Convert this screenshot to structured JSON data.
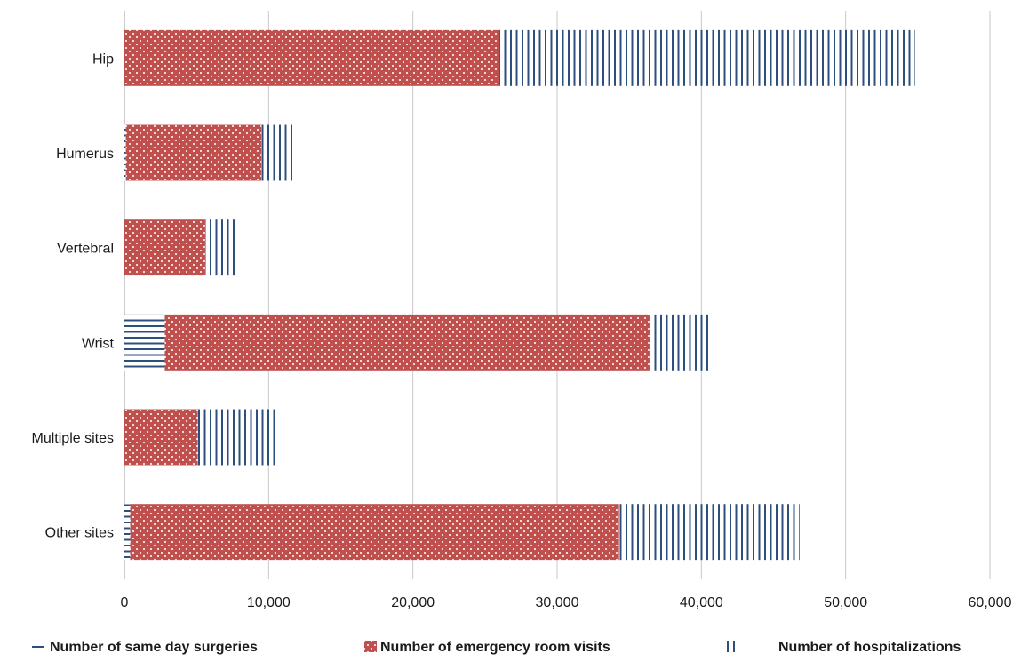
{
  "chart_data": {
    "type": "bar",
    "orientation": "horizontal",
    "stacked": true,
    "categories": [
      "Hip",
      "Humerus",
      "Vertebral",
      "Wrist",
      "Multiple sites",
      "Other sites"
    ],
    "series": [
      {
        "name": "Number of same day surgeries",
        "values": [
          0,
          100,
          0,
          2800,
          0,
          400
        ],
        "color": "#2c4f7c",
        "pattern": "horizontal-lines"
      },
      {
        "name": "Number of emergency room visits",
        "values": [
          26000,
          9400,
          5600,
          33600,
          5100,
          33900
        ],
        "color": "#c0504d",
        "pattern": "dots"
      },
      {
        "name": "Number of hospitalizations",
        "values": [
          28800,
          2200,
          2100,
          4300,
          5500,
          12500
        ],
        "color": "#2c4f7c",
        "pattern": "vertical-lines"
      }
    ],
    "xlim": [
      0,
      60000
    ],
    "xticks": [
      0,
      10000,
      20000,
      30000,
      40000,
      50000,
      60000
    ],
    "xtick_labels": [
      "0",
      "10,000",
      "20,000",
      "30,000",
      "40,000",
      "50,000",
      "60,000"
    ],
    "title": "",
    "xlabel": "",
    "ylabel": "",
    "grid": "vertical",
    "legend_position": "bottom"
  }
}
